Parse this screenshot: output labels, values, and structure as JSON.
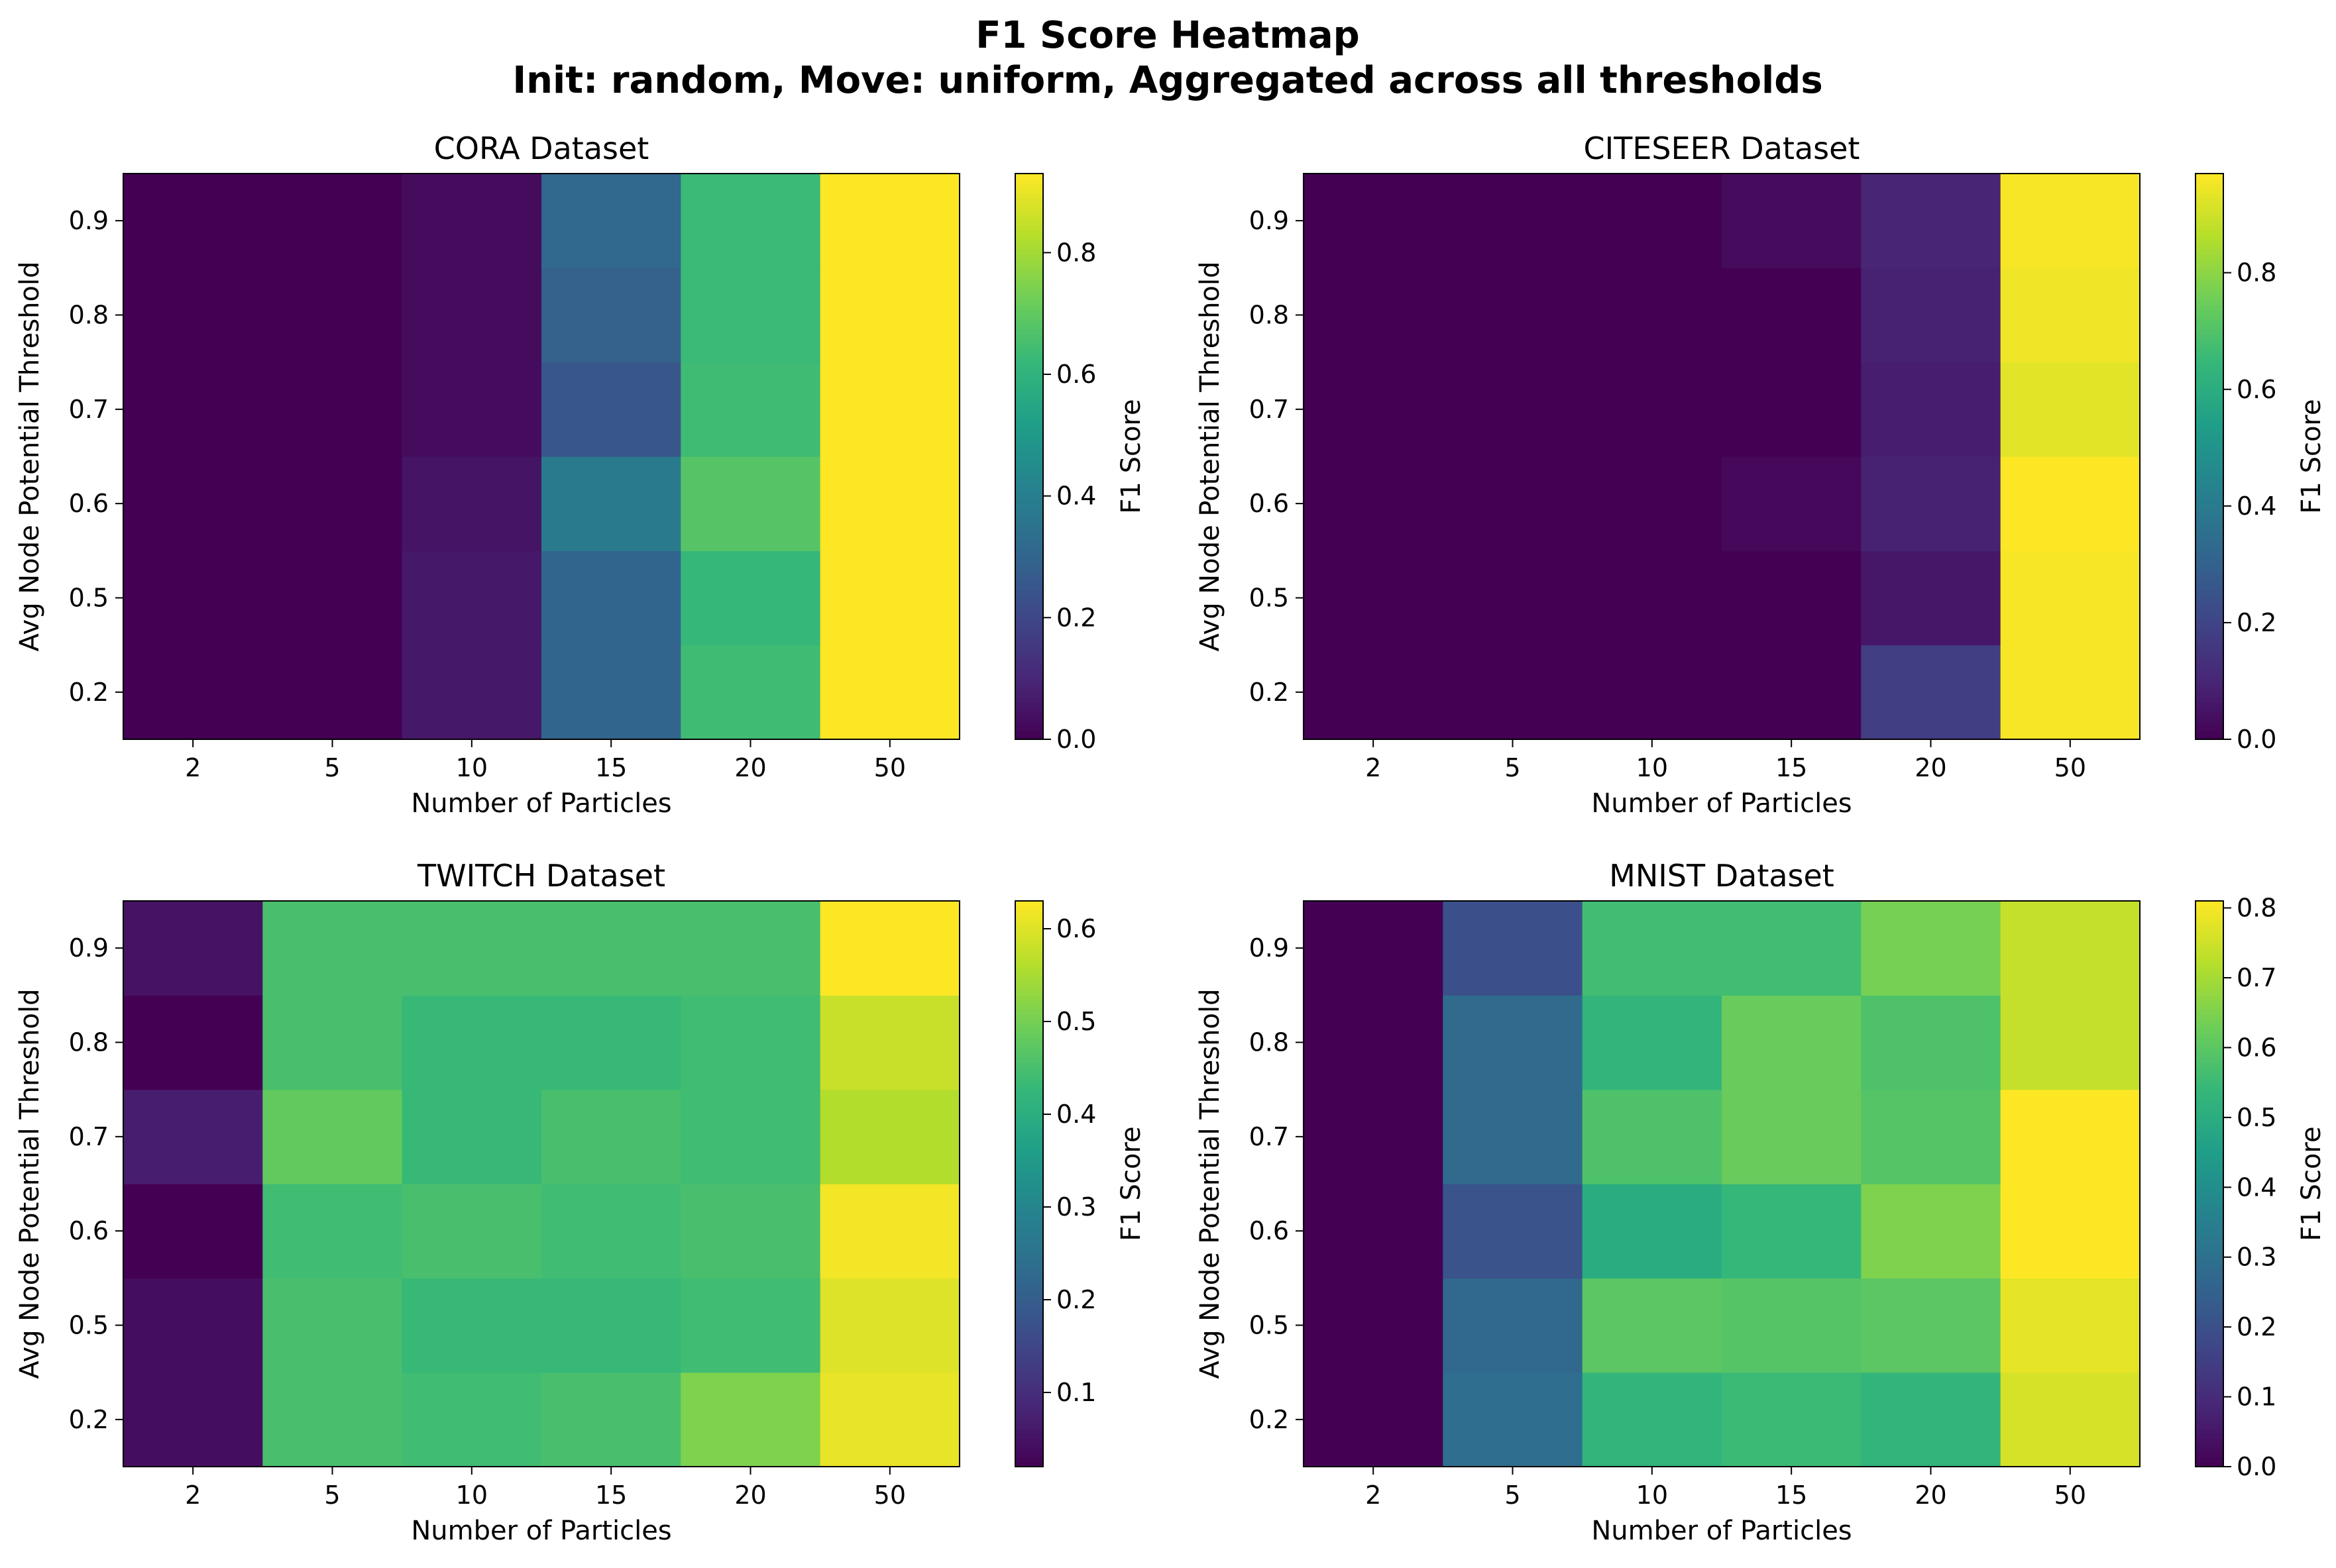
{
  "figure": {
    "title_line1": "F1 Score Heatmap",
    "title_line2": "Init: random, Move: uniform, Aggregated across all thresholds"
  },
  "colormap": [
    "#440154",
    "#482878",
    "#3e4989",
    "#31688e",
    "#26828e",
    "#1f9e89",
    "#35b779",
    "#6ece58",
    "#b5de2b",
    "#fde725"
  ],
  "chart_data": [
    {
      "type": "heatmap",
      "title": "CORA Dataset",
      "xlabel": "Number of Particles",
      "ylabel": "Avg Node Potential Threshold",
      "colorbar_label": "F1 Score",
      "x_categories": [
        "2",
        "5",
        "10",
        "15",
        "20",
        "50"
      ],
      "y_categories": [
        "0.2",
        "0.5",
        "0.6",
        "0.7",
        "0.8",
        "0.9"
      ],
      "clim": [
        0,
        0.93
      ],
      "colorbar_ticks": [
        "0.0",
        "0.2",
        "0.4",
        "0.6",
        "0.8"
      ],
      "values": [
        [
          0.0,
          0.0,
          0.06,
          0.3,
          0.64,
          0.93
        ],
        [
          0.0,
          0.0,
          0.06,
          0.3,
          0.62,
          0.93
        ],
        [
          0.0,
          0.0,
          0.05,
          0.38,
          0.68,
          0.93
        ],
        [
          0.0,
          0.0,
          0.03,
          0.25,
          0.64,
          0.93
        ],
        [
          0.0,
          0.0,
          0.03,
          0.29,
          0.63,
          0.93
        ],
        [
          0.0,
          0.0,
          0.03,
          0.31,
          0.63,
          0.93
        ]
      ]
    },
    {
      "type": "heatmap",
      "title": "CITESEER Dataset",
      "xlabel": "Number of Particles",
      "ylabel": "Avg Node Potential Threshold",
      "colorbar_label": "F1 Score",
      "x_categories": [
        "2",
        "5",
        "10",
        "15",
        "20",
        "50"
      ],
      "y_categories": [
        "0.2",
        "0.5",
        "0.6",
        "0.7",
        "0.8",
        "0.9"
      ],
      "clim": [
        0,
        0.97
      ],
      "colorbar_ticks": [
        "0.0",
        "0.2",
        "0.4",
        "0.6",
        "0.8"
      ],
      "values": [
        [
          0.0,
          0.0,
          0.0,
          0.0,
          0.18,
          0.96
        ],
        [
          0.0,
          0.0,
          0.0,
          0.0,
          0.06,
          0.96
        ],
        [
          0.0,
          0.0,
          0.0,
          0.02,
          0.09,
          0.97
        ],
        [
          0.0,
          0.0,
          0.0,
          0.0,
          0.08,
          0.93
        ],
        [
          0.0,
          0.0,
          0.0,
          0.0,
          0.09,
          0.95
        ],
        [
          0.0,
          0.0,
          0.0,
          0.03,
          0.1,
          0.96
        ]
      ]
    },
    {
      "type": "heatmap",
      "title": "TWITCH Dataset",
      "xlabel": "Number of Particles",
      "ylabel": "Avg Node Potential Threshold",
      "colorbar_label": "F1 Score",
      "x_categories": [
        "2",
        "5",
        "10",
        "15",
        "20",
        "50"
      ],
      "y_categories": [
        "0.2",
        "0.5",
        "0.6",
        "0.7",
        "0.8",
        "0.9"
      ],
      "clim": [
        0.02,
        0.63
      ],
      "colorbar_ticks": [
        "0.1",
        "0.2",
        "0.3",
        "0.4",
        "0.5",
        "0.6"
      ],
      "values": [
        [
          0.04,
          0.45,
          0.44,
          0.45,
          0.51,
          0.61
        ],
        [
          0.04,
          0.45,
          0.43,
          0.43,
          0.44,
          0.6
        ],
        [
          0.02,
          0.44,
          0.45,
          0.44,
          0.45,
          0.62
        ],
        [
          0.07,
          0.48,
          0.43,
          0.45,
          0.44,
          0.56
        ],
        [
          0.02,
          0.45,
          0.43,
          0.43,
          0.44,
          0.58
        ],
        [
          0.05,
          0.45,
          0.45,
          0.45,
          0.45,
          0.63
        ]
      ]
    },
    {
      "type": "heatmap",
      "title": "MNIST Dataset",
      "xlabel": "Number of Particles",
      "ylabel": "Avg Node Potential Threshold",
      "colorbar_label": "F1 Score",
      "x_categories": [
        "2",
        "5",
        "10",
        "15",
        "20",
        "50"
      ],
      "y_categories": [
        "0.2",
        "0.5",
        "0.6",
        "0.7",
        "0.8",
        "0.9"
      ],
      "clim": [
        0,
        0.81
      ],
      "colorbar_ticks": [
        "0.0",
        "0.1",
        "0.2",
        "0.3",
        "0.4",
        "0.5",
        "0.6",
        "0.7",
        "0.8"
      ],
      "values": [
        [
          0.0,
          0.29,
          0.53,
          0.55,
          0.53,
          0.76
        ],
        [
          0.0,
          0.27,
          0.6,
          0.59,
          0.6,
          0.78
        ],
        [
          0.0,
          0.21,
          0.5,
          0.54,
          0.65,
          0.81
        ],
        [
          0.0,
          0.28,
          0.58,
          0.62,
          0.59,
          0.81
        ],
        [
          0.0,
          0.28,
          0.53,
          0.62,
          0.58,
          0.74
        ],
        [
          0.0,
          0.2,
          0.56,
          0.56,
          0.64,
          0.74
        ]
      ]
    }
  ]
}
